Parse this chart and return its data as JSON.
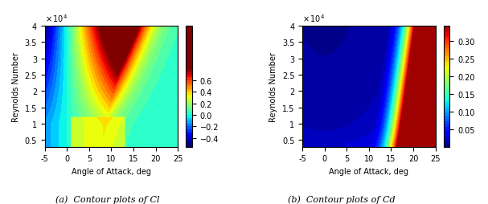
{
  "alpha_min": -5,
  "alpha_max": 25,
  "Re_min": 3000,
  "Re_max": 40000,
  "cl_vmin": -0.5,
  "cl_vmax": 0.8,
  "cd_vmin": 0.0,
  "cd_vmax": 0.35,
  "cl_cbar_ticks": [
    -0.4,
    -0.2,
    0.0,
    0.2,
    0.4,
    0.6
  ],
  "cd_cbar_ticks": [
    0.05,
    0.1,
    0.15,
    0.2,
    0.25,
    0.3
  ],
  "xlabel": "Angle of Attack, deg",
  "ylabel": "Reynolds Number",
  "title_a": "(a)  Contour plots of Cl",
  "title_b": "(b)  Contour plots of Cd",
  "xticks": [
    -5,
    0,
    5,
    10,
    15,
    20,
    25
  ],
  "yticks": [
    5000,
    10000,
    15000,
    20000,
    25000,
    30000,
    35000,
    40000
  ],
  "ytick_labels": [
    "0.5",
    "1",
    "1.5",
    "2",
    "2.5",
    "3",
    "3.5",
    "4"
  ]
}
